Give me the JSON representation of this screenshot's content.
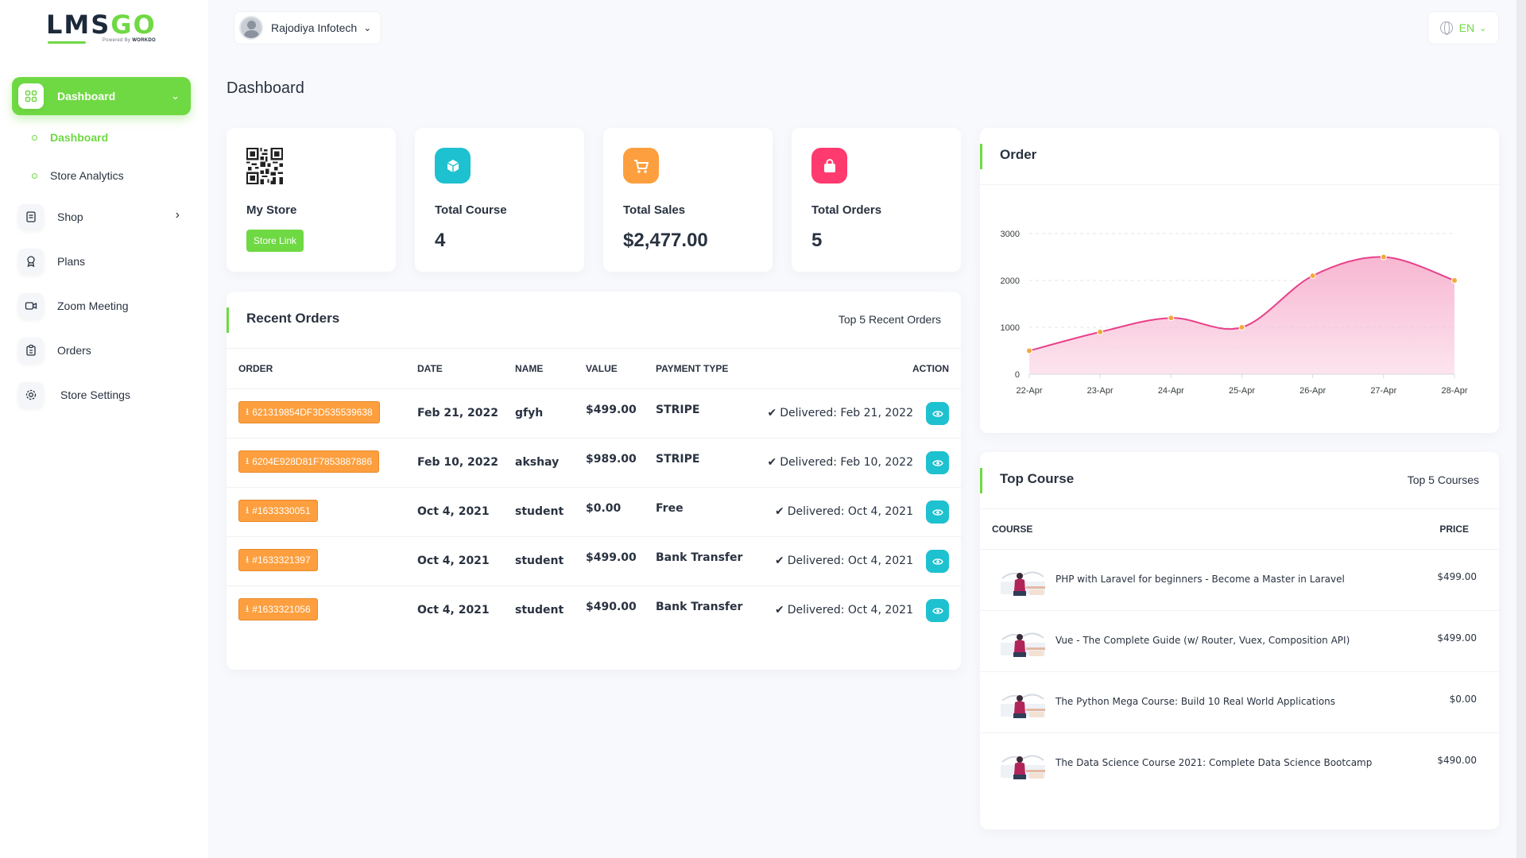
{
  "brand": {
    "logo_main": "LMS",
    "logo_accent": "GO",
    "logo_sub": "Powered By",
    "logo_sub_brand": "WORKDO"
  },
  "sidebar": {
    "active": {
      "label": "Dashboard"
    },
    "sub_items": [
      {
        "label": "Dashboard",
        "active": true
      },
      {
        "label": "Store Analytics",
        "active": false
      }
    ],
    "items": [
      {
        "label": "Shop",
        "icon": "shop-icon",
        "has_chevron": true
      },
      {
        "label": "Plans",
        "icon": "award-icon"
      },
      {
        "label": "Zoom Meeting",
        "icon": "video-icon"
      },
      {
        "label": "Orders",
        "icon": "clipboard-icon"
      },
      {
        "label": "Store Settings",
        "icon": "settings-icon"
      }
    ]
  },
  "header": {
    "user_name": "Rajodiya Infotech",
    "language": "EN"
  },
  "page_title": "Dashboard",
  "stats": {
    "store": {
      "title": "My Store",
      "button": "Store Link"
    },
    "course": {
      "title": "Total Course",
      "value": "4",
      "color": "#1ec1cf"
    },
    "sales": {
      "title": "Total Sales",
      "value": "$2,477.00",
      "color": "#fd9f3e"
    },
    "orders": {
      "title": "Total Orders",
      "value": "5",
      "color": "#ff3a6e"
    }
  },
  "recent_orders": {
    "title": "Recent Orders",
    "subtitle": "Top 5 Recent Orders",
    "columns": [
      "ORDER",
      "DATE",
      "NAME",
      "VALUE",
      "PAYMENT TYPE",
      "ACTION"
    ],
    "rows": [
      {
        "order": "621319854DF3D535539638",
        "date": "Feb 21, 2022",
        "name": "gfyh",
        "value": "$499.00",
        "payment": "STRIPE",
        "status": "Delivered: Feb 21, 2022"
      },
      {
        "order": "6204E928D81F7853887886",
        "date": "Feb 10, 2022",
        "name": "akshay",
        "value": "$989.00",
        "payment": "STRIPE",
        "status": "Delivered: Feb 10, 2022"
      },
      {
        "order": "#1633330051",
        "date": "Oct 4, 2021",
        "name": "student",
        "value": "$0.00",
        "payment": "Free",
        "status": "Delivered: Oct 4, 2021"
      },
      {
        "order": "#1633321397",
        "date": "Oct 4, 2021",
        "name": "student",
        "value": "$499.00",
        "payment": "Bank Transfer",
        "status": "Delivered: Oct 4, 2021"
      },
      {
        "order": "#1633321056",
        "date": "Oct 4, 2021",
        "name": "student",
        "value": "$490.00",
        "payment": "Bank Transfer",
        "status": "Delivered: Oct 4, 2021"
      }
    ]
  },
  "order_chart": {
    "title": "Order",
    "chart_data": {
      "type": "area",
      "title": "Order",
      "categories": [
        "22-Apr",
        "23-Apr",
        "24-Apr",
        "25-Apr",
        "26-Apr",
        "27-Apr",
        "28-Apr"
      ],
      "series": [
        {
          "values": [
            500,
            900,
            1200,
            1000,
            2100,
            2500,
            2000
          ]
        }
      ],
      "ylim": [
        0,
        3000
      ],
      "yticks": [
        "0",
        "1000",
        "2000",
        "3000"
      ],
      "grid": true,
      "line_color": "#e8408a",
      "fill_color": "#f7b3cf",
      "marker_color": "#f4a93b"
    }
  },
  "top_course": {
    "title": "Top Course",
    "subtitle": "Top 5 Courses",
    "columns": [
      "COURSE",
      "PRICE"
    ],
    "rows": [
      {
        "name": "PHP with Laravel for beginners - Become a Master in Laravel",
        "price": "$499.00"
      },
      {
        "name": "Vue - The Complete Guide (w/ Router, Vuex, Composition API)",
        "price": "$499.00"
      },
      {
        "name": "The Python Mega Course: Build 10 Real World Applications",
        "price": "$0.00"
      },
      {
        "name": "The Data Science Course 2021: Complete Data Science Bootcamp",
        "price": "$490.00"
      }
    ]
  }
}
